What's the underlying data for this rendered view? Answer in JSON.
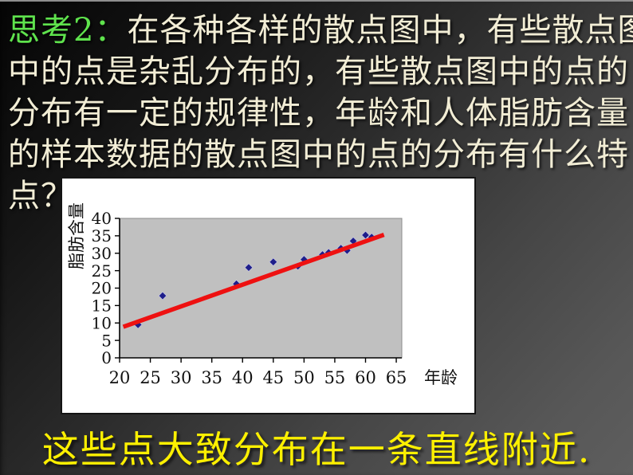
{
  "slide": {
    "headline": {
      "prefix": "思考2：",
      "line1_rest": "在各种各样的散点图中，有些散点图",
      "line2": "中的点是杂乱分布的，有些散点图中的点的",
      "line3": "分布有一定的规律性，年龄和人体脂肪含量",
      "line4": "的样本数据的散点图中的点的分布有什么特",
      "line5": "点？",
      "prefix_color": "#5fe34d",
      "text_color": "#f2edd5"
    },
    "caption": {
      "text": "这些点大致分布在一条直线附近.",
      "color": "#fdf000"
    }
  },
  "chart_data": {
    "type": "scatter",
    "title": "",
    "xlabel": "年龄",
    "ylabel": "脂肪含量",
    "xlim": [
      20,
      65.9
    ],
    "ylim": [
      0,
      40
    ],
    "xticks": [
      20,
      25,
      30,
      35,
      40,
      45,
      50,
      55,
      60,
      65
    ],
    "yticks": [
      0,
      5,
      10,
      15,
      20,
      25,
      30,
      35,
      40
    ],
    "grid": false,
    "legend": null,
    "points": [
      [
        23,
        9.5
      ],
      [
        27,
        17.8
      ],
      [
        39,
        21.2
      ],
      [
        41,
        25.9
      ],
      [
        45,
        27.5
      ],
      [
        49,
        26.3
      ],
      [
        50,
        28.2
      ],
      [
        53,
        29.6
      ],
      [
        54,
        30.2
      ],
      [
        56,
        31.4
      ],
      [
        57,
        30.8
      ],
      [
        58,
        33.5
      ],
      [
        60,
        35.2
      ],
      [
        61,
        34.6
      ]
    ],
    "trendline": {
      "x1": 20.6,
      "y1": 8.9,
      "x2": 63.0,
      "y2": 35.3
    },
    "marker_color": "#1e1e8a",
    "marker_edge_color": "#c9c9e8",
    "trend_color": "#ee1111",
    "plot_bg": "#c0c0c0",
    "plot_border_color": "#8c8c8c",
    "axis_color": "#000000",
    "tick_label_color": "#111111"
  }
}
